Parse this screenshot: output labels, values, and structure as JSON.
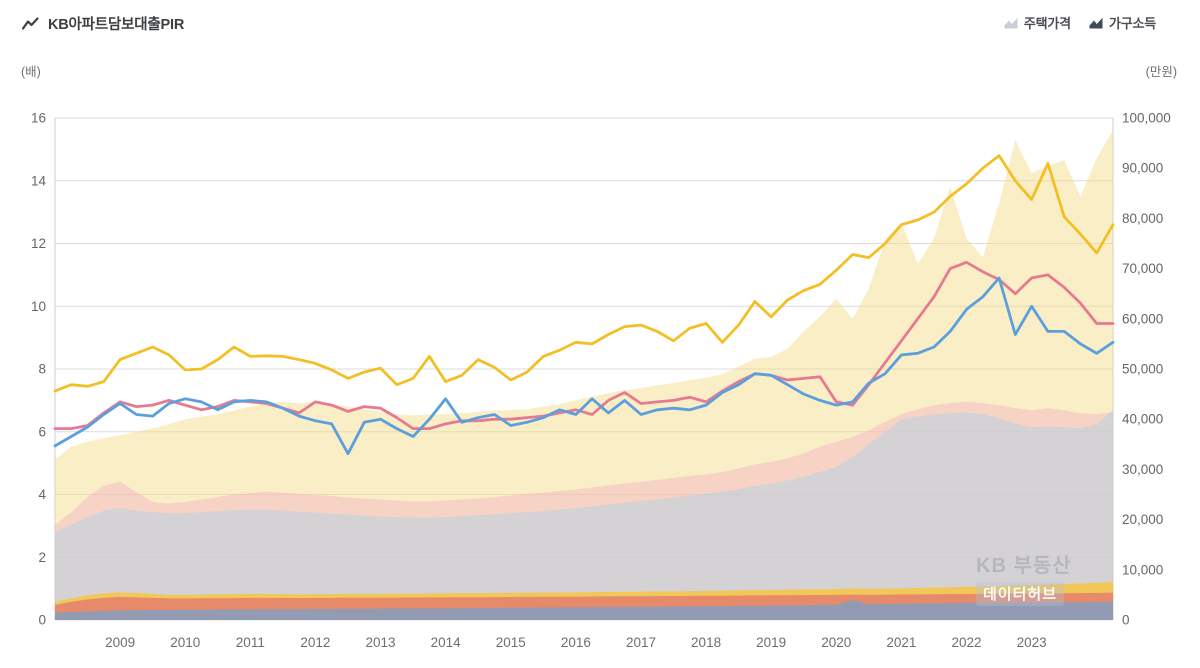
{
  "header": {
    "title": "KB아파트담보대출PIR",
    "legend": [
      {
        "label": "주택가격",
        "icon_color": "#c9ced6"
      },
      {
        "label": "가구소득",
        "icon_color": "#3f4a5c"
      }
    ]
  },
  "axes": {
    "left_unit": "(배)",
    "right_unit": "(만원)",
    "left_ticks": [
      "0",
      "2",
      "4",
      "6",
      "8",
      "10",
      "12",
      "14",
      "16"
    ],
    "right_ticks": [
      "0",
      "10,000",
      "20,000",
      "30,000",
      "40,000",
      "50,000",
      "60,000",
      "70,000",
      "80,000",
      "90,000",
      "100,000"
    ],
    "x_ticks": [
      "2009",
      "2010",
      "2011",
      "2012",
      "2013",
      "2014",
      "2015",
      "2016",
      "2017",
      "2018",
      "2019",
      "2020",
      "2021",
      "2022",
      "2023"
    ]
  },
  "watermark": {
    "line1": "KB 부동산",
    "line2": "데이터허브"
  },
  "chart_data": {
    "type": "line",
    "x_start": 2008.0,
    "x_step": 0.25,
    "x_range": [
      2008.0,
      2024.25
    ],
    "left_axis": {
      "unit": "배",
      "range": [
        0,
        16
      ],
      "grid_step": 2
    },
    "right_axis": {
      "unit": "만원",
      "range": [
        0,
        100000
      ],
      "grid_step": 10000
    },
    "grid": "horizontal",
    "legend_position": "top-right",
    "lines": [
      {
        "name": "pir-line-pink",
        "axis": "left",
        "color": "#e57a90",
        "values": [
          6.1,
          6.1,
          6.2,
          6.6,
          6.95,
          6.8,
          6.85,
          7.0,
          6.85,
          6.7,
          6.8,
          7.0,
          6.95,
          6.9,
          6.75,
          6.6,
          6.95,
          6.85,
          6.65,
          6.8,
          6.75,
          6.45,
          6.1,
          6.1,
          6.25,
          6.35,
          6.35,
          6.4,
          6.4,
          6.45,
          6.5,
          6.6,
          6.7,
          6.55,
          7.0,
          7.25,
          6.9,
          6.95,
          7.0,
          7.1,
          6.95,
          7.3,
          7.6,
          7.85,
          7.8,
          7.65,
          7.7,
          7.75,
          6.95,
          6.85,
          7.5,
          8.2,
          8.9,
          9.6,
          10.3,
          11.2,
          11.4,
          11.1,
          10.85,
          10.4,
          10.9,
          11.0,
          10.6,
          10.1,
          9.45,
          9.45
        ]
      },
      {
        "name": "pir-line-blue",
        "axis": "left",
        "color": "#5c9fdd",
        "values": [
          5.55,
          5.85,
          6.15,
          6.55,
          6.9,
          6.55,
          6.5,
          6.9,
          7.05,
          6.95,
          6.7,
          6.95,
          7.0,
          6.95,
          6.75,
          6.5,
          6.35,
          6.25,
          5.3,
          6.3,
          6.4,
          6.1,
          5.85,
          6.4,
          7.05,
          6.3,
          6.45,
          6.55,
          6.2,
          6.3,
          6.45,
          6.7,
          6.55,
          7.05,
          6.6,
          7.0,
          6.55,
          6.7,
          6.75,
          6.7,
          6.85,
          7.25,
          7.5,
          7.85,
          7.8,
          7.5,
          7.2,
          7.0,
          6.85,
          6.95,
          7.55,
          7.85,
          8.45,
          8.5,
          8.7,
          9.2,
          9.9,
          10.3,
          10.9,
          9.1,
          10.0,
          9.2,
          9.2,
          8.8,
          8.5,
          8.85
        ]
      },
      {
        "name": "pir-line-yellow",
        "axis": "left",
        "color": "#f2bf24",
        "values": [
          7.3,
          7.5,
          7.45,
          7.6,
          8.3,
          8.5,
          8.7,
          8.45,
          7.97,
          8.0,
          8.3,
          8.7,
          8.4,
          8.42,
          8.4,
          8.3,
          8.18,
          7.97,
          7.7,
          7.9,
          8.03,
          7.5,
          7.7,
          8.4,
          7.6,
          7.8,
          8.3,
          8.05,
          7.65,
          7.9,
          8.4,
          8.6,
          8.85,
          8.8,
          9.1,
          9.35,
          9.4,
          9.2,
          8.9,
          9.3,
          9.45,
          8.85,
          9.4,
          10.15,
          9.66,
          10.2,
          10.5,
          10.7,
          11.15,
          11.65,
          11.55,
          12.0,
          12.6,
          12.75,
          13.0,
          13.5,
          13.9,
          14.4,
          14.8,
          14.0,
          13.4,
          14.55,
          12.85,
          12.3,
          11.7,
          12.6
        ]
      }
    ],
    "areas": [
      {
        "name": "house-price-area-yellow",
        "axis": "right",
        "color": "#f5d981",
        "opacity": 0.45,
        "values": [
          32000,
          34500,
          35500,
          36200,
          36800,
          37500,
          38200,
          39000,
          40000,
          40500,
          41000,
          41800,
          42500,
          43200,
          43500,
          43200,
          43500,
          43000,
          42500,
          42000,
          41500,
          41000,
          40800,
          41000,
          41000,
          41200,
          41500,
          41800,
          41800,
          42000,
          42500,
          43000,
          43800,
          44500,
          45200,
          45800,
          46200,
          46800,
          47200,
          47800,
          48200,
          49000,
          50500,
          52000,
          52400,
          54000,
          57500,
          60400,
          64000,
          60000,
          66000,
          75700,
          79100,
          71000,
          76000,
          86300,
          76000,
          72300,
          83000,
          95600,
          89000,
          90500,
          91600,
          84300,
          92000,
          97600
        ]
      },
      {
        "name": "house-price-area-pink",
        "axis": "right",
        "color": "#f2a9c4",
        "opacity": 0.38,
        "values": [
          19000,
          21500,
          24500,
          26800,
          27500,
          25500,
          23500,
          23200,
          23500,
          24000,
          24500,
          25000,
          25300,
          25600,
          25400,
          25100,
          24900,
          24700,
          24400,
          24200,
          24000,
          23800,
          23600,
          23600,
          23800,
          24000,
          24200,
          24500,
          24800,
          25100,
          25400,
          25700,
          26000,
          26400,
          26800,
          27200,
          27500,
          27900,
          28300,
          28700,
          29000,
          29500,
          30200,
          31000,
          31500,
          32200,
          33200,
          34500,
          35500,
          36500,
          37800,
          39500,
          41000,
          42000,
          42800,
          43200,
          43500,
          43200,
          42800,
          42200,
          41800,
          42200,
          41800,
          41200,
          41000,
          41500
        ]
      },
      {
        "name": "house-price-area-blue",
        "axis": "right",
        "color": "#a8d2ef",
        "opacity": 0.42,
        "values": [
          17500,
          19000,
          20500,
          21800,
          22300,
          21800,
          21500,
          21300,
          21300,
          21500,
          21700,
          21900,
          22000,
          22000,
          21800,
          21600,
          21400,
          21200,
          21000,
          20800,
          20600,
          20500,
          20400,
          20400,
          20500,
          20700,
          20900,
          21100,
          21300,
          21500,
          21700,
          22000,
          22300,
          22600,
          23000,
          23400,
          23700,
          24000,
          24400,
          24800,
          25200,
          25600,
          26100,
          26700,
          27200,
          27800,
          28500,
          29500,
          30500,
          32500,
          35000,
          37500,
          40000,
          40500,
          41000,
          41200,
          41400,
          41000,
          40200,
          39200,
          38400,
          38600,
          38400,
          38200,
          39000,
          41800
        ]
      },
      {
        "name": "household-income-area-yellow",
        "axis": "right",
        "color": "#f3c64d",
        "opacity": 0.92,
        "values": [
          3600,
          4300,
          4900,
          5300,
          5500,
          5400,
          5200,
          5000,
          5000,
          5050,
          5100,
          5150,
          5200,
          5200,
          5150,
          5100,
          5100,
          5150,
          5200,
          5200,
          5200,
          5250,
          5250,
          5300,
          5300,
          5350,
          5350,
          5400,
          5400,
          5450,
          5450,
          5500,
          5500,
          5550,
          5600,
          5600,
          5650,
          5700,
          5700,
          5750,
          5800,
          5850,
          5900,
          5950,
          6000,
          6050,
          6100,
          6100,
          6150,
          6300,
          6200,
          6250,
          6300,
          6400,
          6500,
          6550,
          6600,
          6700,
          6800,
          6900,
          7000,
          7100,
          7200,
          7300,
          7400,
          7600
        ]
      },
      {
        "name": "household-income-area-pink",
        "axis": "right",
        "color": "#e5846a",
        "opacity": 0.92,
        "values": [
          3000,
          3600,
          4100,
          4400,
          4600,
          4500,
          4400,
          4300,
          4300,
          4320,
          4350,
          4370,
          4400,
          4400,
          4380,
          4360,
          4380,
          4400,
          4420,
          4440,
          4450,
          4460,
          4480,
          4500,
          4500,
          4520,
          4540,
          4560,
          4580,
          4600,
          4620,
          4640,
          4650,
          4680,
          4700,
          4720,
          4740,
          4760,
          4780,
          4800,
          4820,
          4840,
          4870,
          4900,
          4920,
          4940,
          4960,
          4980,
          5000,
          5050,
          5000,
          5050,
          5080,
          5100,
          5120,
          5150,
          5180,
          5200,
          5230,
          5250,
          5280,
          5300,
          5330,
          5360,
          5400,
          5450
        ]
      },
      {
        "name": "household-income-area-dark",
        "axis": "right",
        "color": "#8e9cb6",
        "opacity": 0.95,
        "values": [
          1500,
          1600,
          1700,
          1800,
          1900,
          1950,
          2000,
          2000,
          2050,
          2050,
          2100,
          2100,
          2150,
          2150,
          2150,
          2150,
          2200,
          2200,
          2250,
          2250,
          2300,
          2300,
          2300,
          2350,
          2350,
          2400,
          2400,
          2400,
          2450,
          2450,
          2500,
          2500,
          2550,
          2550,
          2600,
          2600,
          2650,
          2650,
          2700,
          2700,
          2750,
          2750,
          2800,
          2800,
          2850,
          2900,
          2950,
          3000,
          3000,
          4000,
          3150,
          3200,
          3250,
          3300,
          3300,
          3350,
          3400,
          3400,
          3450,
          3450,
          3500,
          3500,
          3550,
          3550,
          3600,
          3650
        ]
      }
    ]
  }
}
